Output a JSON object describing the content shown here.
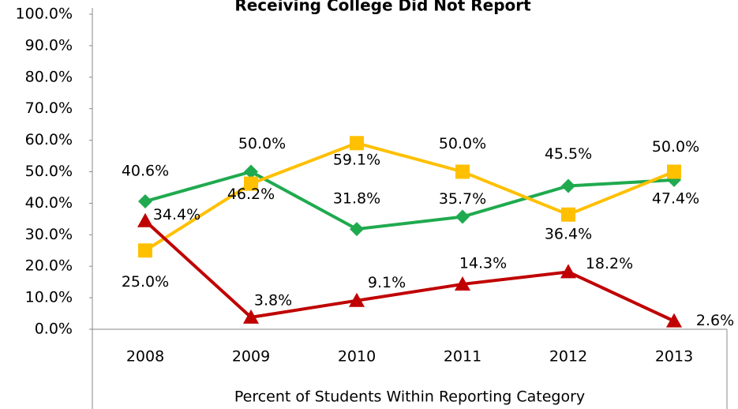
{
  "chart_data": {
    "type": "line",
    "title": "Receiving College Did Not Report",
    "x_label": "Percent of Students Within Reporting Category",
    "categories": [
      "2008",
      "2009",
      "2010",
      "2011",
      "2012",
      "2013"
    ],
    "series": [
      {
        "color": "#1faa4f",
        "marker": "diamond",
        "values": [
          40.6,
          50.0,
          31.8,
          35.7,
          45.5,
          47.4
        ],
        "value_labels": [
          "40.6%",
          "50.0%",
          "31.8%",
          "35.7%",
          "45.5%",
          "47.4%"
        ]
      },
      {
        "color": "#ffc000",
        "marker": "square",
        "values": [
          25.0,
          46.2,
          59.1,
          50.0,
          36.4,
          50.0
        ],
        "value_labels": [
          "25.0%",
          "46.2%",
          "59.1%",
          "50.0%",
          "36.4%",
          "50.0%"
        ]
      },
      {
        "color": "#c00000",
        "marker": "triangle",
        "values": [
          34.4,
          3.8,
          9.1,
          14.3,
          18.2,
          2.6
        ],
        "value_labels": [
          "34.4%",
          "3.8%",
          "9.1%",
          "14.3%",
          "18.2%",
          "2.6%"
        ]
      }
    ],
    "ylim": [
      0,
      100
    ],
    "yticks": [
      {
        "value": 0,
        "label": "0.0%"
      },
      {
        "value": 10,
        "label": "10.0%"
      },
      {
        "value": 20,
        "label": "20.0%"
      },
      {
        "value": 30,
        "label": "30.0%"
      },
      {
        "value": 40,
        "label": "40.0%"
      },
      {
        "value": 50,
        "label": "50.0%"
      },
      {
        "value": 60,
        "label": "60.0%"
      },
      {
        "value": 70,
        "label": "70.0%"
      },
      {
        "value": 80,
        "label": "80.0%"
      },
      {
        "value": 90,
        "label": "90.0%"
      },
      {
        "value": 100,
        "label": "100.0%"
      }
    ]
  }
}
